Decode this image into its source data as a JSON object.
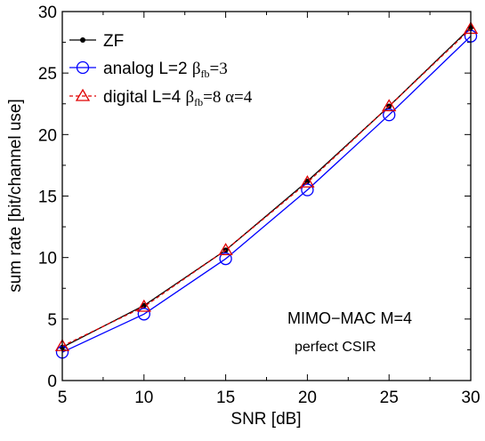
{
  "chart_data": {
    "type": "line",
    "xlabel": "SNR [dB]",
    "ylabel": "sum rate [bit/channel use]",
    "xlim": [
      5,
      30
    ],
    "ylim": [
      0,
      30
    ],
    "xticks": [
      "5",
      "10",
      "15",
      "20",
      "25",
      "30"
    ],
    "yticks": [
      "0",
      "5",
      "10",
      "15",
      "20",
      "25",
      "30"
    ],
    "x": [
      5,
      10,
      15,
      20,
      25,
      30
    ],
    "grid": false,
    "legend_position": "top-left",
    "series": [
      {
        "name": "ZF",
        "values": [
          2.7,
          6.1,
          10.6,
          16.2,
          22.3,
          28.7
        ],
        "color": "#000000",
        "marker": "dot",
        "line": "solid"
      },
      {
        "name": "analog L=2 βfb=3",
        "values": [
          2.3,
          5.4,
          9.9,
          15.5,
          21.6,
          28.0
        ],
        "color": "#0000ff",
        "marker": "circle",
        "line": "solid"
      },
      {
        "name": "digital L=4 βfb=8 α=4",
        "values": [
          2.8,
          6.0,
          10.6,
          16.1,
          22.3,
          28.6
        ],
        "color": "#e00000",
        "marker": "triangle",
        "line": "dashed"
      }
    ],
    "legend": {
      "zf": {
        "name": "ZF"
      },
      "analog": {
        "pre": "analog L=2 ",
        "beta": "β",
        "beta_sub": "fb",
        "post": "=3"
      },
      "digital": {
        "pre": "digital L=4 ",
        "beta": "β",
        "beta_sub": "fb",
        "mid": "=8 ",
        "alpha": "α",
        "post": "=4"
      }
    },
    "annotations": {
      "main": "MIMO−MAC M=4",
      "sub": "perfect CSIR"
    }
  }
}
